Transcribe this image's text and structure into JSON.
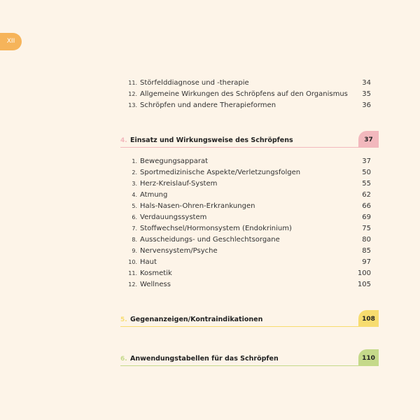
{
  "page_number": "XII",
  "colors": {
    "tab": "#f6b45a",
    "chapter4": "#f2b8bd",
    "chapter5": "#f7dc6f",
    "chapter6": "#c5d98a"
  },
  "intro_entries": [
    {
      "num": "11.",
      "title": "Störfelddiagnose und -therapie",
      "page": "34"
    },
    {
      "num": "12.",
      "title": "Allgemeine Wirkungen des Schröpfens auf den Organismus",
      "page": "35"
    },
    {
      "num": "13.",
      "title": "Schröpfen und andere Therapieformen",
      "page": "36"
    }
  ],
  "chapters": [
    {
      "num": "4.",
      "title": "Einsatz und Wirkungsweise des Schröpfens",
      "page": "37",
      "entries": [
        {
          "num": "1.",
          "title": "Bewegungsapparat",
          "page": "37"
        },
        {
          "num": "2.",
          "title": "Sportmedizinische Aspekte/Verletzungsfolgen",
          "page": "50"
        },
        {
          "num": "3.",
          "title": "Herz-Kreislauf-System",
          "page": "55"
        },
        {
          "num": "4.",
          "title": "Atmung",
          "page": "62"
        },
        {
          "num": "5.",
          "title": "Hals-Nasen-Ohren-Erkrankungen",
          "page": "66"
        },
        {
          "num": "6.",
          "title": "Verdauungssystem",
          "page": "69"
        },
        {
          "num": "7.",
          "title": "Stoffwechsel/Hormonsystem (Endokrinium)",
          "page": "75"
        },
        {
          "num": "8.",
          "title": "Ausscheidungs- und Geschlechtsorgane",
          "page": "80"
        },
        {
          "num": "9.",
          "title": "Nervensystem/Psyche",
          "page": "85"
        },
        {
          "num": "10.",
          "title": "Haut",
          "page": "97"
        },
        {
          "num": "11.",
          "title": "Kosmetik",
          "page": "100"
        },
        {
          "num": "12.",
          "title": "Wellness",
          "page": "105"
        }
      ]
    },
    {
      "num": "5.",
      "title": "Gegenanzeigen/Kontraindikationen",
      "page": "108"
    },
    {
      "num": "6.",
      "title": "Anwendungstabellen für das Schröpfen",
      "page": "110"
    }
  ]
}
